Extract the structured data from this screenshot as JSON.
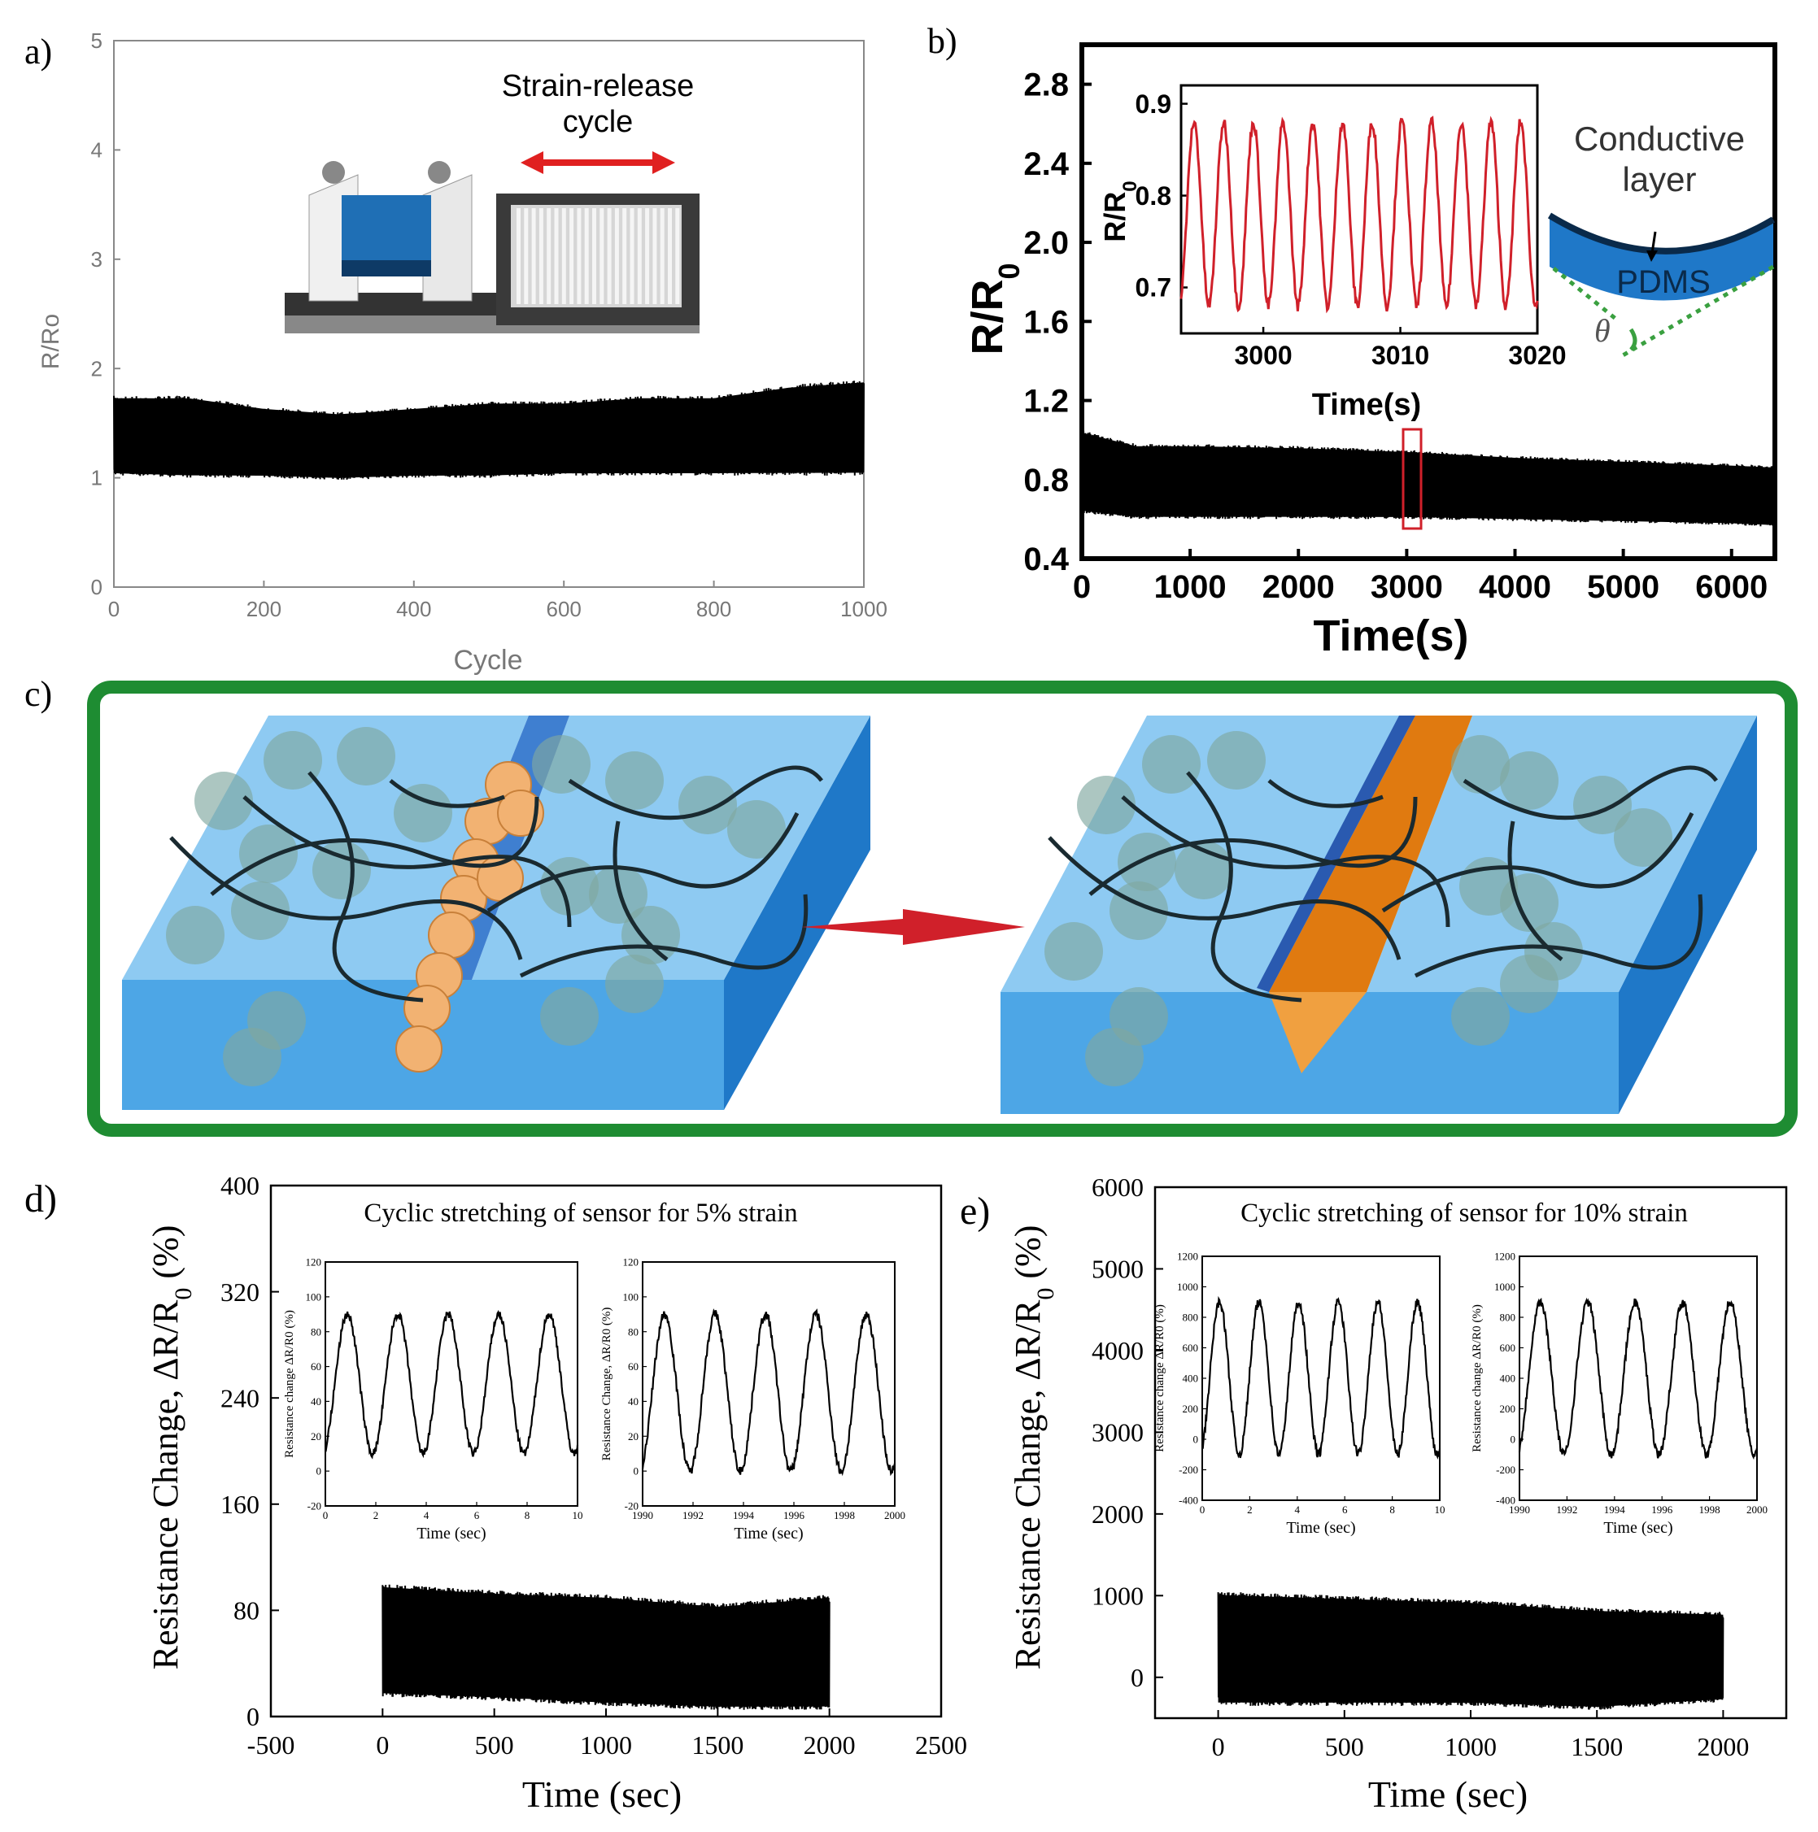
{
  "panels": {
    "a": {
      "label": "a)",
      "chart_data": {
        "type": "line",
        "xlabel": "Cycle",
        "ylabel": "R/Ro",
        "xlim": [
          0,
          1000
        ],
        "ylim": [
          0,
          5
        ],
        "x_ticks": [
          "0",
          "200",
          "400",
          "600",
          "800",
          "1000"
        ],
        "y_ticks": [
          "0",
          "1",
          "2",
          "3",
          "4",
          "5"
        ],
        "envelope": {
          "x": [
            0,
            100,
            200,
            300,
            400,
            500,
            600,
            700,
            800,
            900,
            1000
          ],
          "max": [
            1.75,
            1.75,
            1.65,
            1.6,
            1.65,
            1.7,
            1.7,
            1.75,
            1.75,
            1.85,
            1.9
          ],
          "min": [
            1.02,
            1.0,
            1.0,
            0.98,
            1.0,
            1.0,
            1.02,
            1.02,
            1.02,
            1.02,
            1.02
          ]
        },
        "inset_label": "Strain-release cycle"
      }
    },
    "b": {
      "label": "b)",
      "chart_data": {
        "type": "line",
        "xlabel": "Time(s)",
        "ylabel": "R/R0",
        "xlim": [
          0,
          6400
        ],
        "ylim": [
          0.4,
          3.0
        ],
        "x_ticks": [
          "0",
          "1000",
          "2000",
          "3000",
          "4000",
          "5000",
          "6000"
        ],
        "y_ticks": [
          "0.4",
          "0.8",
          "1.2",
          "1.6",
          "2.0",
          "2.4",
          "2.8"
        ],
        "envelope": {
          "x": [
            0,
            500,
            1000,
            2000,
            3000,
            4000,
            5000,
            6000,
            6400
          ],
          "max": [
            1.05,
            0.98,
            0.98,
            0.97,
            0.95,
            0.92,
            0.9,
            0.88,
            0.87
          ],
          "min": [
            0.63,
            0.6,
            0.6,
            0.6,
            0.6,
            0.59,
            0.58,
            0.57,
            0.56
          ]
        },
        "inset": {
          "xlabel": "Time(s)",
          "ylabel": "R/R0",
          "xlim": [
            2994,
            3020
          ],
          "ylim": [
            0.65,
            0.92
          ],
          "x_ticks": [
            "3000",
            "3010",
            "3020"
          ],
          "y_ticks": [
            "0.7",
            "0.8",
            "0.9"
          ],
          "cycles": 12,
          "max": 0.88,
          "min": 0.68
        },
        "annotation": {
          "layer_label_1": "Conductive",
          "layer_label_2": "layer",
          "substrate_label": "PDMS",
          "angle_symbol": "θ"
        }
      }
    },
    "c": {
      "label": "c)"
    },
    "d": {
      "label": "d)",
      "chart_data": {
        "type": "line",
        "title": "Cyclic stretching of sensor for 5% strain",
        "xlabel": "Time (sec)",
        "ylabel": "Resistance Change, ΔR/R0 (%)",
        "xlim": [
          -500,
          2500
        ],
        "ylim": [
          0,
          400
        ],
        "x_ticks": [
          "-500",
          "0",
          "500",
          "1000",
          "1500",
          "2000",
          "2500"
        ],
        "y_ticks": [
          "0",
          "80",
          "160",
          "240",
          "320",
          "400"
        ],
        "envelope": {
          "x": [
            0,
            500,
            1000,
            1500,
            2000
          ],
          "max": [
            100,
            95,
            92,
            85,
            92
          ],
          "min": [
            15,
            12,
            8,
            5,
            5
          ]
        },
        "insets": [
          {
            "xlabel": "Time (sec)",
            "ylabel": "Resistance change ΔR/R0 (%)",
            "x_ticks": [
              "0",
              "2",
              "4",
              "6",
              "8",
              "10"
            ],
            "y_ticks": [
              "-20",
              "0",
              "20",
              "40",
              "60",
              "80",
              "100",
              "120"
            ],
            "xlim": [
              0,
              10
            ],
            "ylim": [
              -20,
              120
            ],
            "cycles": 5,
            "max": 90,
            "min": 10
          },
          {
            "xlabel": "Time (sec)",
            "ylabel": "Resistance Change, ΔR/R0 (%)",
            "x_ticks": [
              "1990",
              "1992",
              "1994",
              "1996",
              "1998",
              "2000"
            ],
            "y_ticks": [
              "-20",
              "0",
              "20",
              "40",
              "60",
              "80",
              "100",
              "120"
            ],
            "xlim": [
              1990,
              2000
            ],
            "ylim": [
              -20,
              120
            ],
            "cycles": 5,
            "max": 90,
            "min": 0
          }
        ]
      }
    },
    "e": {
      "label": "e)",
      "chart_data": {
        "type": "line",
        "title": "Cyclic stretching of sensor for 10% strain",
        "xlabel": "Time (sec)",
        "ylabel": "Resistance Change, ΔR/R0 (%)",
        "xlim": [
          -250,
          2250
        ],
        "ylim": [
          -500,
          6000
        ],
        "x_ticks": [
          "0",
          "500",
          "1000",
          "1500",
          "2000"
        ],
        "y_ticks": [
          "0",
          "1000",
          "2000",
          "3000",
          "4000",
          "5000",
          "6000"
        ],
        "envelope": {
          "x": [
            0,
            500,
            1000,
            1500,
            2000
          ],
          "max": [
            1050,
            1000,
            950,
            850,
            800
          ],
          "min": [
            -350,
            -350,
            -350,
            -400,
            -300
          ]
        },
        "insets": [
          {
            "xlabel": "Time (sec)",
            "ylabel": "Resistance change ΔR/R0 (%)",
            "x_ticks": [
              "0",
              "2",
              "4",
              "6",
              "8",
              "10"
            ],
            "y_ticks": [
              "-400",
              "-200",
              "0",
              "200",
              "400",
              "600",
              "800",
              "1000",
              "1200"
            ],
            "xlim": [
              0,
              10
            ],
            "ylim": [
              -400,
              1200
            ],
            "cycles": 6,
            "max": 900,
            "min": -100
          },
          {
            "xlabel": "Time (sec)",
            "ylabel": "Resistance change ΔR/R0 (%)",
            "x_ticks": [
              "1990",
              "1992",
              "1994",
              "1996",
              "1998",
              "2000"
            ],
            "y_ticks": [
              "-400",
              "-200",
              "0",
              "200",
              "400",
              "600",
              "800",
              "1000",
              "1200"
            ],
            "xlim": [
              1990,
              2000
            ],
            "ylim": [
              -400,
              1200
            ],
            "cycles": 5,
            "max": 900,
            "min": -100
          }
        ]
      }
    }
  },
  "colors": {
    "green_frame": "#1e8c32",
    "blue_block": "#4da6e6",
    "blue_dark": "#1f78c8",
    "red": "#d0202a",
    "orange": "#e98a1e",
    "ink": "#000000",
    "gray_axis": "#777777"
  }
}
